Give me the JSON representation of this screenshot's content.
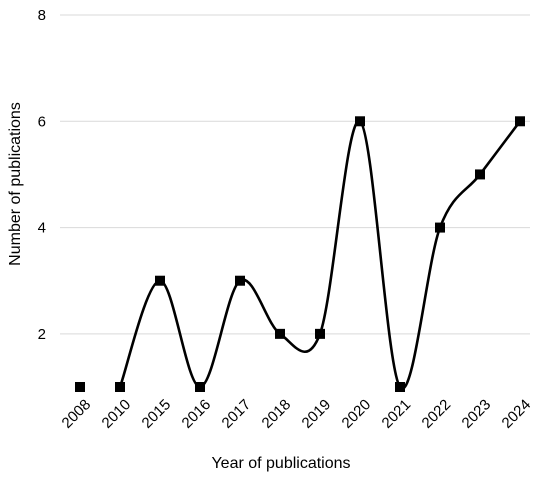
{
  "chart_data": {
    "type": "line",
    "title": "",
    "xlabel": "Year of publications",
    "ylabel": "Number of publications",
    "categories": [
      "2008",
      "2010",
      "2015",
      "2016",
      "2017",
      "2018",
      "2019",
      "2020",
      "2021",
      "2022",
      "2023",
      "2024"
    ],
    "series": [
      {
        "values": [
          1,
          1,
          3,
          1,
          3,
          2,
          2,
          6,
          1,
          4,
          5,
          6
        ]
      }
    ],
    "ylim": [
      1,
      8
    ],
    "yticks": [
      2,
      4,
      6,
      8
    ],
    "grid": "horizontal",
    "smooth": true,
    "marker": "square",
    "colors": {
      "line": "#000000",
      "grid": "#d9d9d9",
      "marker": "#000000"
    }
  }
}
